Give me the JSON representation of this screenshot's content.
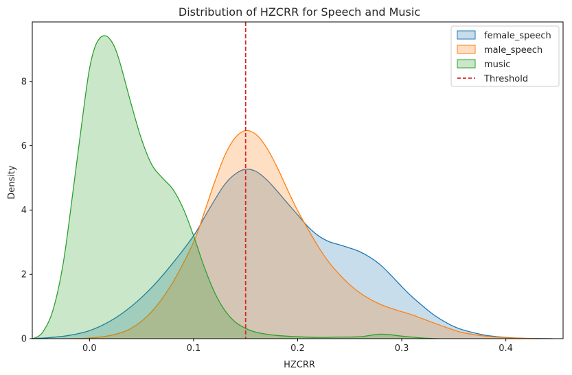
{
  "chart_data": {
    "type": "area",
    "title": "Distribution of HZCRR for Speech and Music",
    "xlabel": "HZCRR",
    "ylabel": "Density",
    "xlim": [
      -0.055,
      0.455
    ],
    "ylim": [
      0,
      9.85
    ],
    "xticks": [
      0.0,
      0.1,
      0.2,
      0.3,
      0.4
    ],
    "xtick_labels": [
      "0.0",
      "0.1",
      "0.2",
      "0.3",
      "0.4"
    ],
    "yticks": [
      0,
      2,
      4,
      6,
      8
    ],
    "ytick_labels": [
      "0",
      "2",
      "4",
      "6",
      "8"
    ],
    "grid": false,
    "legend_position": "top-right",
    "series": [
      {
        "name": "female_speech",
        "color": "#1f77b4",
        "fill_opacity": 0.25,
        "x": [
          -0.055,
          -0.04,
          -0.02,
          0.0,
          0.02,
          0.04,
          0.06,
          0.08,
          0.1,
          0.11,
          0.12,
          0.13,
          0.14,
          0.15,
          0.16,
          0.17,
          0.18,
          0.19,
          0.2,
          0.21,
          0.22,
          0.23,
          0.24,
          0.25,
          0.26,
          0.27,
          0.28,
          0.29,
          0.3,
          0.31,
          0.32,
          0.33,
          0.34,
          0.35,
          0.36,
          0.38,
          0.4,
          0.42,
          0.445
        ],
        "values": [
          0.01,
          0.03,
          0.1,
          0.25,
          0.55,
          1.0,
          1.6,
          2.35,
          3.2,
          3.75,
          4.3,
          4.8,
          5.12,
          5.27,
          5.2,
          4.95,
          4.6,
          4.22,
          3.85,
          3.48,
          3.2,
          3.02,
          2.92,
          2.82,
          2.7,
          2.52,
          2.28,
          1.96,
          1.62,
          1.3,
          1.02,
          0.76,
          0.55,
          0.38,
          0.26,
          0.11,
          0.04,
          0.01,
          0.0
        ]
      },
      {
        "name": "male_speech",
        "color": "#ff7f0e",
        "fill_opacity": 0.25,
        "x": [
          -0.02,
          0.0,
          0.02,
          0.04,
          0.06,
          0.08,
          0.1,
          0.11,
          0.12,
          0.13,
          0.14,
          0.15,
          0.16,
          0.17,
          0.18,
          0.19,
          0.2,
          0.21,
          0.22,
          0.23,
          0.24,
          0.25,
          0.26,
          0.27,
          0.28,
          0.29,
          0.3,
          0.31,
          0.32,
          0.33,
          0.34,
          0.35,
          0.36,
          0.38,
          0.4,
          0.42,
          0.435
        ],
        "values": [
          0.0,
          0.02,
          0.1,
          0.32,
          0.85,
          1.75,
          3.0,
          3.9,
          4.85,
          5.7,
          6.25,
          6.47,
          6.35,
          5.95,
          5.35,
          4.65,
          3.98,
          3.4,
          2.85,
          2.38,
          2.0,
          1.68,
          1.42,
          1.22,
          1.06,
          0.94,
          0.84,
          0.74,
          0.62,
          0.5,
          0.38,
          0.27,
          0.18,
          0.08,
          0.03,
          0.01,
          0.0
        ]
      },
      {
        "name": "music",
        "color": "#2ca02c",
        "fill_opacity": 0.25,
        "x": [
          -0.053,
          -0.045,
          -0.035,
          -0.025,
          -0.015,
          -0.005,
          0.0,
          0.005,
          0.01,
          0.015,
          0.02,
          0.025,
          0.03,
          0.04,
          0.05,
          0.06,
          0.07,
          0.08,
          0.09,
          0.1,
          0.11,
          0.12,
          0.13,
          0.14,
          0.15,
          0.16,
          0.17,
          0.18,
          0.2,
          0.22,
          0.24,
          0.26,
          0.28,
          0.3,
          0.32,
          0.335
        ],
        "values": [
          0.02,
          0.2,
          0.9,
          2.4,
          4.8,
          7.3,
          8.4,
          9.05,
          9.35,
          9.42,
          9.3,
          9.0,
          8.5,
          7.3,
          6.2,
          5.4,
          5.0,
          4.65,
          4.05,
          3.2,
          2.25,
          1.45,
          0.88,
          0.52,
          0.32,
          0.2,
          0.14,
          0.1,
          0.06,
          0.04,
          0.05,
          0.06,
          0.14,
          0.08,
          0.02,
          0.0
        ]
      }
    ],
    "threshold": {
      "name": "Threshold",
      "x": 0.15,
      "color": "#d62728",
      "style": "dashed"
    }
  }
}
